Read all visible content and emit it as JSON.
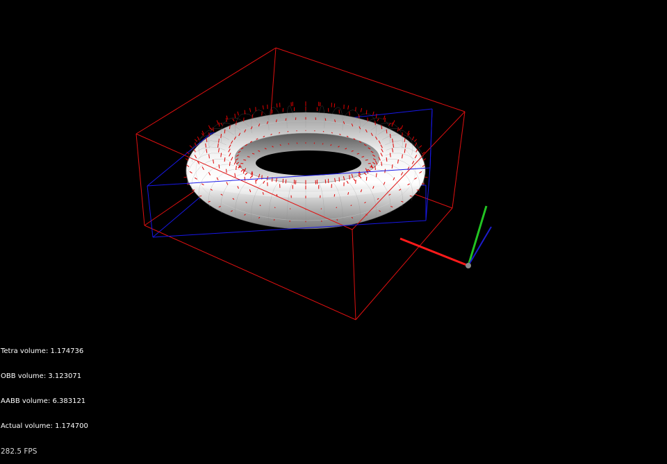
{
  "colors": {
    "background": "#000000",
    "obb": "#e01010",
    "aabb": "#1818e8",
    "normals": "#e00000",
    "axis_x": "#ff1a1a",
    "axis_y": "#22c422",
    "axis_z": "#1c1ccc",
    "axis_origin": "#8a8a8a",
    "hud_text": "#ffffff"
  },
  "scene": {
    "object": "torus",
    "bounding_boxes": [
      "OBB",
      "AABB"
    ],
    "show_normals": true,
    "axis_gizmo_icon": "xyz-axes-icon"
  },
  "stats": {
    "tetra_volume": "Tetra volume: 1.174736",
    "obb_volume": "OBB volume: 3.123071",
    "aabb_volume": "AABB volume: 6.383121",
    "actual_volume": "Actual volume: 1.174700",
    "fps": "282.5 FPS"
  }
}
